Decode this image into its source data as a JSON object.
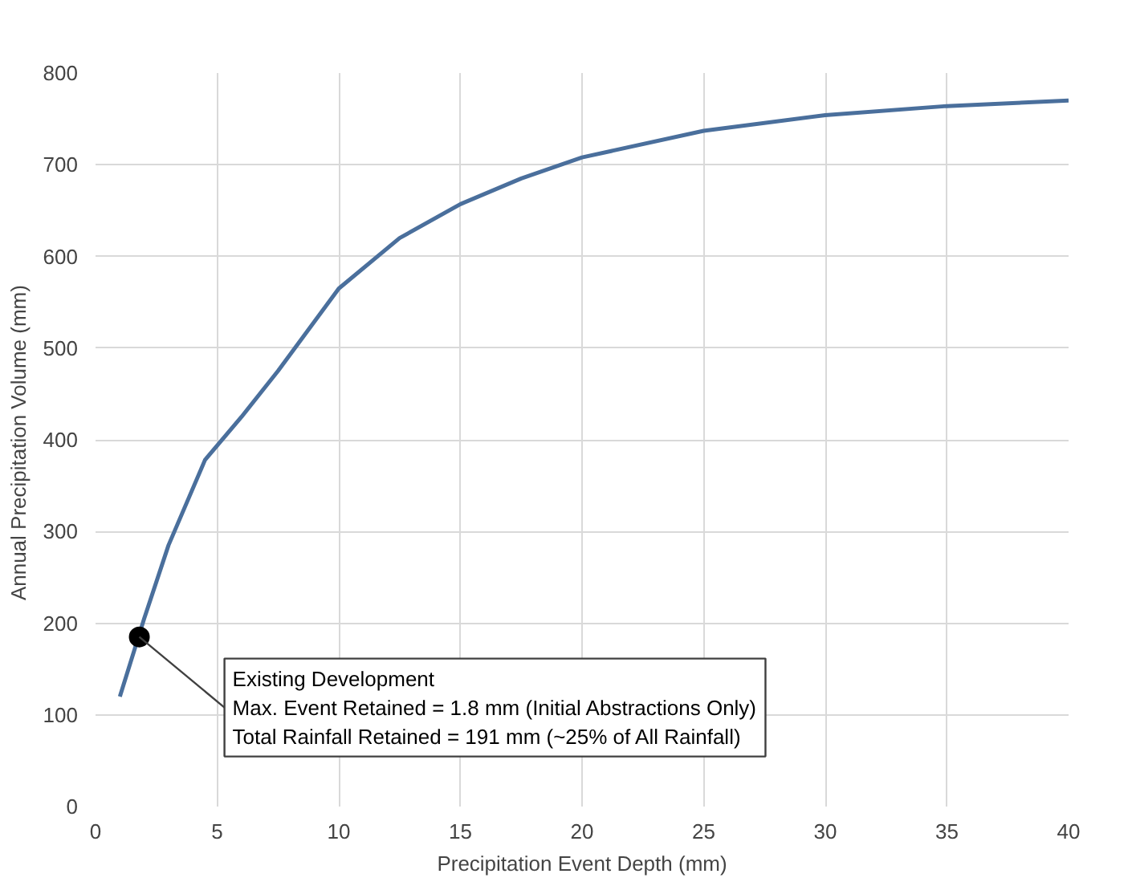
{
  "chart_data": {
    "type": "line",
    "xlabel": "Precipitation Event Depth (mm)",
    "ylabel": "Annual Precipitation Volume  (mm)",
    "xlim": [
      0,
      40
    ],
    "ylim": [
      0,
      800
    ],
    "xticks": [
      0,
      5,
      10,
      15,
      20,
      25,
      30,
      35,
      40
    ],
    "yticks": [
      0,
      100,
      200,
      300,
      400,
      500,
      600,
      700,
      800
    ],
    "grid": true,
    "series": [
      {
        "color": "#4a6f9c",
        "x": [
          1,
          2,
          3,
          4.5,
          6,
          7.5,
          10,
          12.5,
          15,
          17.5,
          20,
          25,
          30,
          35,
          40
        ],
        "values": [
          120,
          205,
          285,
          378,
          425,
          475,
          565,
          620,
          657,
          685,
          708,
          737,
          754,
          764,
          770
        ]
      },
      {
        "type": "scatter",
        "marker": "circle",
        "color": "#000000",
        "x": [
          1.8
        ],
        "values": [
          185
        ]
      }
    ],
    "annotations": [
      {
        "text": "Existing Development\nMax. Event Retained = 1.8 mm (Initial Abstractions Only)\nTotal Rainfall Retained = 191 mm (~25% of All Rainfall)",
        "x": 1.8,
        "y": 185
      }
    ]
  }
}
